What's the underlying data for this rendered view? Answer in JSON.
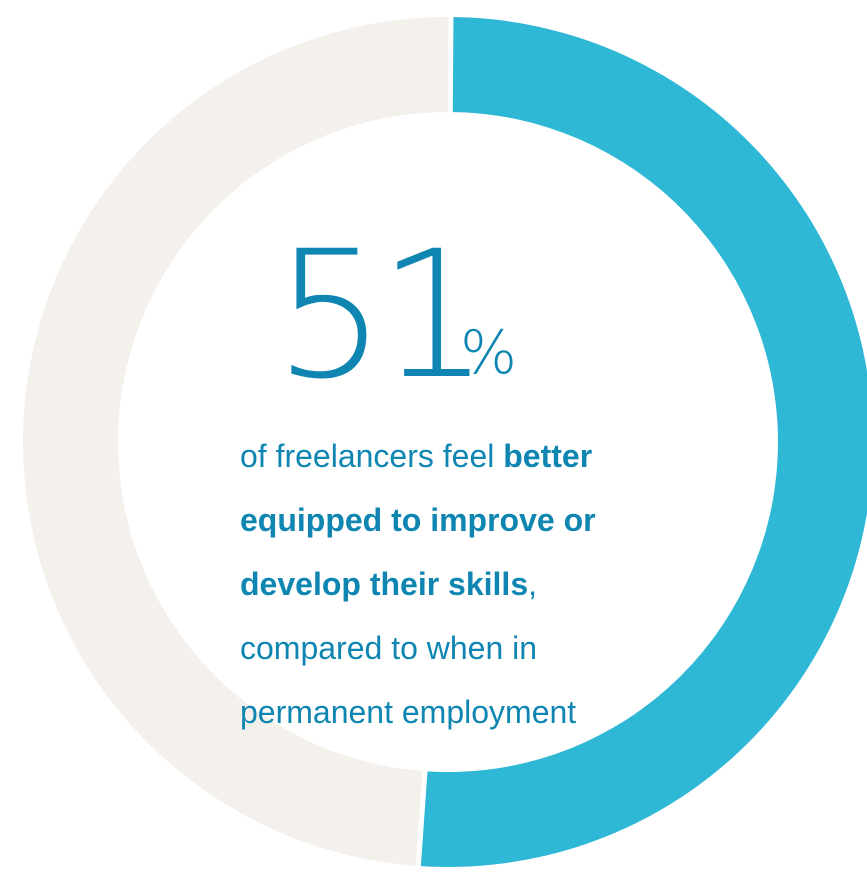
{
  "chart_data": {
    "type": "pie",
    "variant": "donut",
    "values": [
      51,
      49
    ],
    "colors": [
      "#2fb7d6",
      "#f4f0ec"
    ]
  },
  "headline": {
    "number": "51",
    "unit": "%"
  },
  "description": {
    "part1": "of freelancers feel ",
    "bold1": "better",
    "bold2": "equipped to improve or",
    "bold3": "develop their skills",
    "comma": ",",
    "line4": "compared to when in",
    "line5": "permanent employment"
  }
}
